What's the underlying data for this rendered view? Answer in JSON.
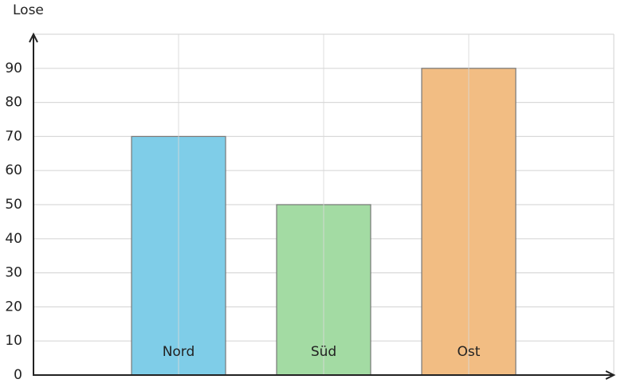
{
  "chart_data": {
    "type": "bar",
    "y_label": "Lose",
    "categories": [
      "Nord",
      "Süd",
      "Ost"
    ],
    "values": [
      70,
      50,
      90
    ],
    "colors": [
      "#7fcde8",
      "#a3dba3",
      "#f2bd83"
    ],
    "ylim": [
      0,
      100
    ],
    "yticks": [
      0,
      10,
      20,
      30,
      40,
      50,
      60,
      70,
      80,
      90
    ],
    "grid": true
  }
}
